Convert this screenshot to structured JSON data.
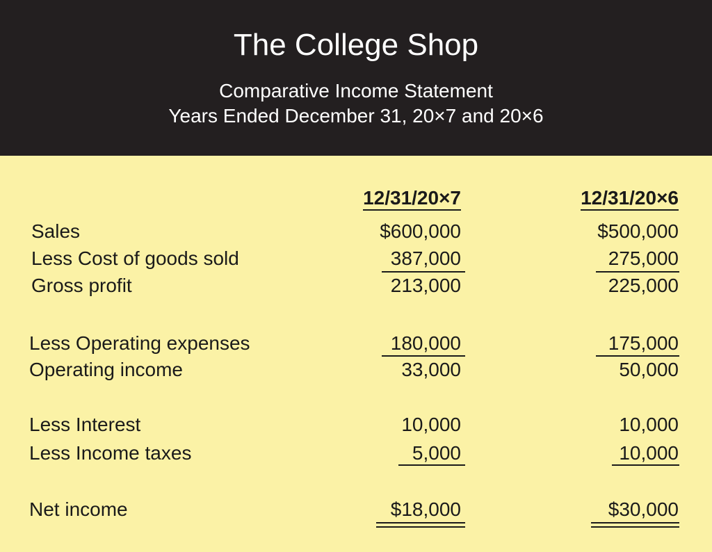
{
  "header": {
    "title": "The College Shop",
    "subtitle_line1": "Comparative Income Statement",
    "subtitle_line2": "Years Ended December 31, 20×7 and 20×6"
  },
  "columns": [
    "12/31/20×7",
    "12/31/20×6"
  ],
  "rows": [
    {
      "label": "Sales",
      "v1": "$600,000",
      "v2": "$500,000"
    },
    {
      "label": "Less Cost of goods sold",
      "v1": "387,000",
      "v2": "275,000"
    },
    {
      "label": "Gross profit",
      "v1": "213,000",
      "v2": "225,000"
    },
    {
      "label": "Less Operating expenses",
      "v1": "180,000",
      "v2": "175,000"
    },
    {
      "label": "Operating income",
      "v1": "33,000",
      "v2": "50,000"
    },
    {
      "label": "Less Interest",
      "v1": "10,000",
      "v2": "10,000"
    },
    {
      "label": "Less Income taxes",
      "v1": "5,000",
      "v2": "10,000"
    },
    {
      "label": "Net income",
      "v1": "$18,000",
      "v2": "$30,000"
    }
  ],
  "colors": {
    "header_bg": "#231f20",
    "page_bg": "#fbf2a6",
    "text": "#1a1a1a"
  }
}
